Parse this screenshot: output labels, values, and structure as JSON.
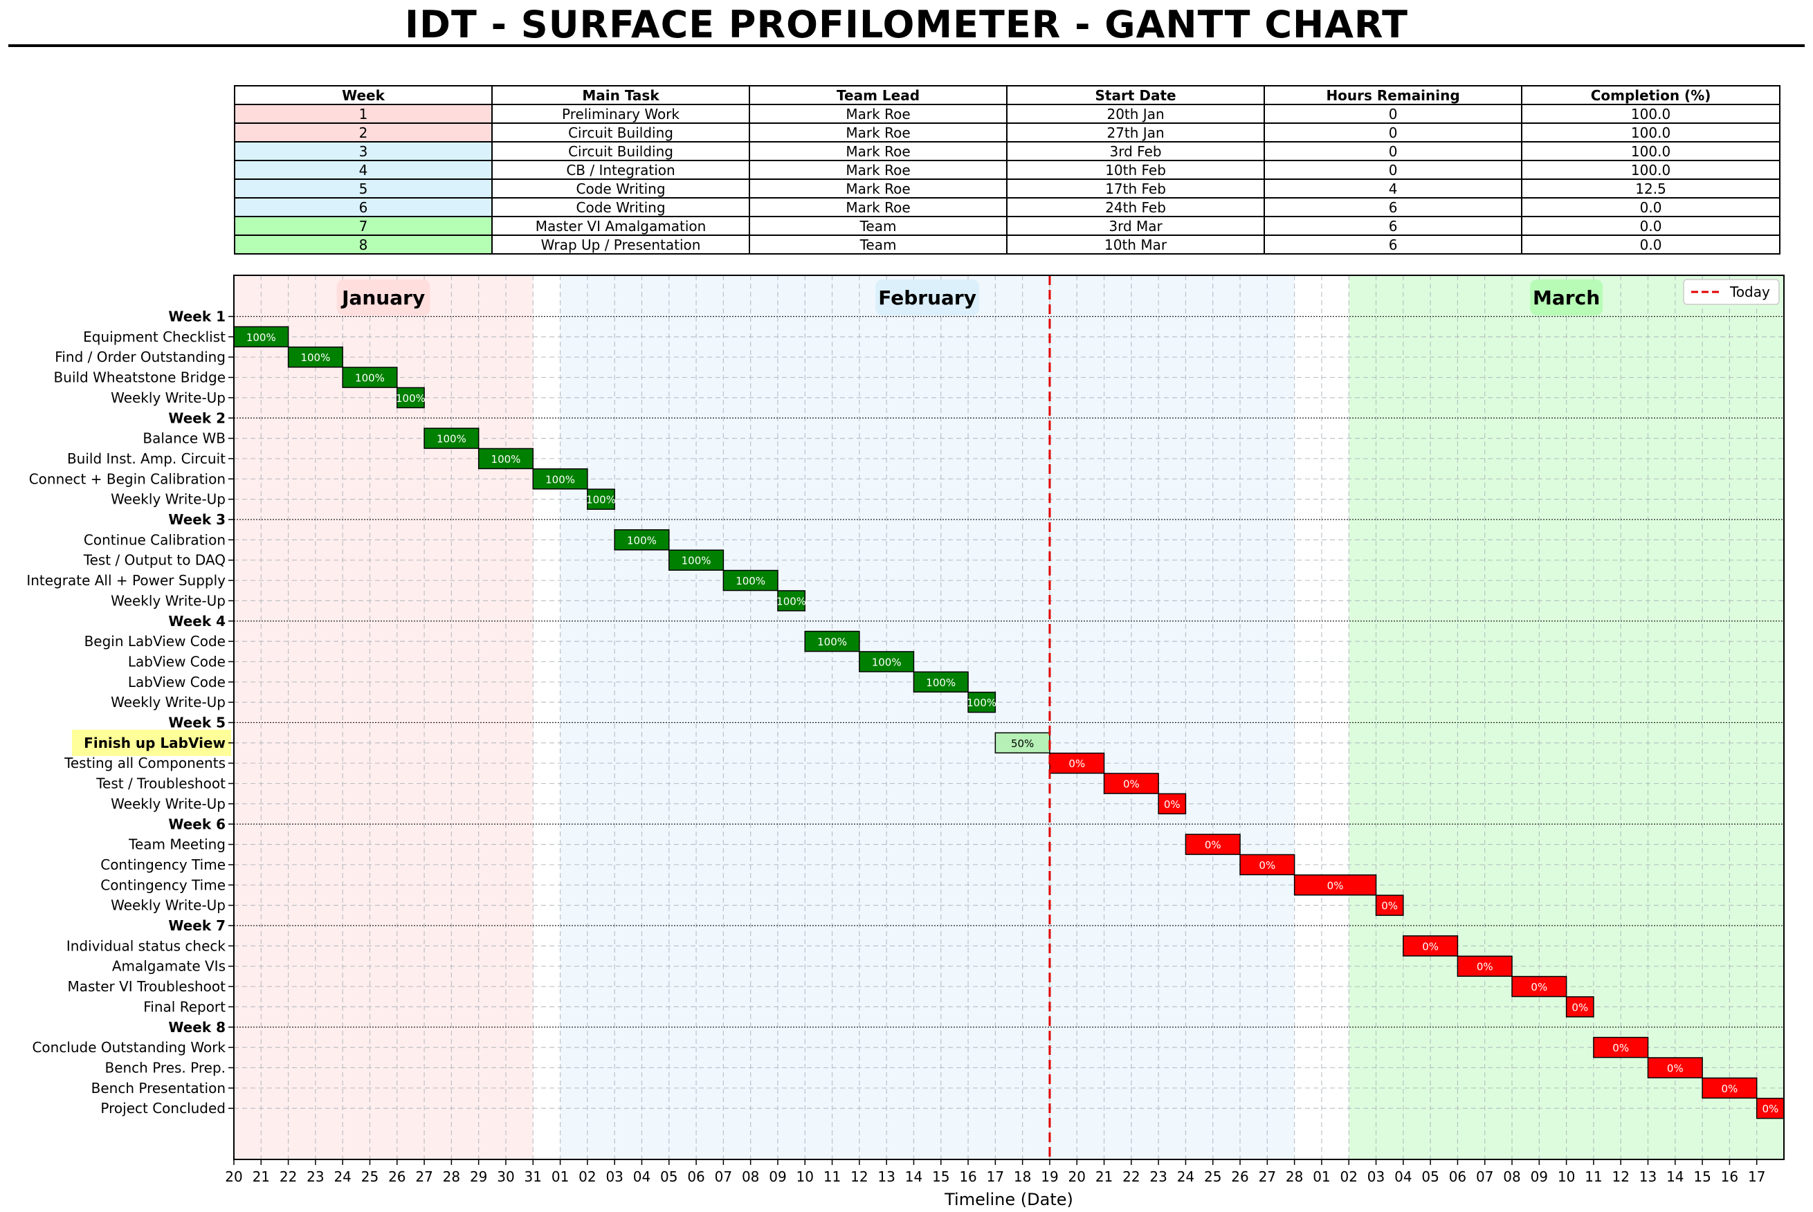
{
  "title": "IDT - SURFACE PROFILOMETER - GANTT CHART",
  "table": {
    "headers": [
      "Week",
      "Main Task",
      "Team Lead",
      "Start Date",
      "Hours Remaining",
      "Completion (%)"
    ],
    "rows": [
      {
        "week": "1",
        "task": "Preliminary Work",
        "lead": "Mark Roe",
        "start": "20th Jan",
        "hours": "0",
        "completion": "100.0",
        "color": "#ffdcdc"
      },
      {
        "week": "2",
        "task": "Circuit Building",
        "lead": "Mark Roe",
        "start": "27th Jan",
        "hours": "0",
        "completion": "100.0",
        "color": "#ffdcdc"
      },
      {
        "week": "3",
        "task": "Circuit Building",
        "lead": "Mark Roe",
        "start": "3rd Feb",
        "hours": "0",
        "completion": "100.0",
        "color": "#d9f2fb"
      },
      {
        "week": "4",
        "task": "CB / Integration",
        "lead": "Mark Roe",
        "start": "10th Feb",
        "hours": "0",
        "completion": "100.0",
        "color": "#d9f2fb"
      },
      {
        "week": "5",
        "task": "Code Writing",
        "lead": "Mark Roe",
        "start": "17th Feb",
        "hours": "4",
        "completion": "12.5",
        "color": "#d9f2fb"
      },
      {
        "week": "6",
        "task": "Code Writing",
        "lead": "Mark Roe",
        "start": "24th Feb",
        "hours": "6",
        "completion": "0.0",
        "color": "#d9f2fb"
      },
      {
        "week": "7",
        "task": "Master VI Amalgamation",
        "lead": "Team",
        "start": "3rd Mar",
        "hours": "6",
        "completion": "0.0",
        "color": "#b5ffb5"
      },
      {
        "week": "8",
        "task": "Wrap Up / Presentation",
        "lead": "Team",
        "start": "10th Mar",
        "hours": "6",
        "completion": "0.0",
        "color": "#b5ffb5"
      }
    ]
  },
  "chart_data": {
    "type": "gantt",
    "xlabel": "Timeline (Date)",
    "x_ticks": [
      "20",
      "21",
      "22",
      "23",
      "24",
      "25",
      "26",
      "27",
      "28",
      "29",
      "30",
      "31",
      "01",
      "02",
      "03",
      "04",
      "05",
      "06",
      "07",
      "08",
      "09",
      "10",
      "11",
      "12",
      "13",
      "14",
      "15",
      "16",
      "17",
      "18",
      "19",
      "20",
      "21",
      "22",
      "23",
      "24",
      "25",
      "26",
      "27",
      "28",
      "01",
      "02",
      "03",
      "04",
      "05",
      "06",
      "07",
      "08",
      "09",
      "10",
      "11",
      "12",
      "13",
      "14",
      "15",
      "16",
      "17"
    ],
    "x_range_dates": [
      "20 Jan",
      "17 Mar"
    ],
    "today": "19 Feb",
    "legend": {
      "label": "Today",
      "position": "top-right"
    },
    "grid": true,
    "months": [
      {
        "name": "January",
        "start": "20 Jan",
        "end": "31 Jan",
        "color": "#ffeeee",
        "label_bg": "#ffdede"
      },
      {
        "name": "February",
        "start": "01 Feb",
        "end": "28 Feb",
        "color": "#f0f7fd",
        "label_bg": "#dcf0fb"
      },
      {
        "name": "March",
        "start": "01 Mar",
        "end": "17 Mar",
        "color": "#ddfcdd",
        "label_bg": "#b7fbb7"
      }
    ],
    "rows": [
      {
        "kind": "week",
        "label": "Week 1"
      },
      {
        "label": "Equipment Checklist",
        "start": "20 Jan",
        "end": "22 Jan",
        "completion": "100%",
        "status": "done"
      },
      {
        "label": "Find / Order Outstanding",
        "start": "22 Jan",
        "end": "24 Jan",
        "completion": "100%",
        "status": "done"
      },
      {
        "label": "Build Wheatstone Bridge",
        "start": "24 Jan",
        "end": "26 Jan",
        "completion": "100%",
        "status": "done"
      },
      {
        "label": "Weekly Write-Up",
        "start": "26 Jan",
        "end": "27 Jan",
        "completion": "100%",
        "status": "done"
      },
      {
        "kind": "week",
        "label": "Week 2"
      },
      {
        "label": "Balance WB",
        "start": "27 Jan",
        "end": "29 Jan",
        "completion": "100%",
        "status": "done"
      },
      {
        "label": "Build Inst. Amp. Circuit",
        "start": "29 Jan",
        "end": "31 Jan",
        "completion": "100%",
        "status": "done"
      },
      {
        "label": "Connect + Begin Calibration",
        "start": "31 Jan",
        "end": "02 Feb",
        "completion": "100%",
        "status": "done"
      },
      {
        "label": "Weekly Write-Up",
        "start": "02 Feb",
        "end": "03 Feb",
        "completion": "100%",
        "status": "done"
      },
      {
        "kind": "week",
        "label": "Week 3"
      },
      {
        "label": "Continue Calibration",
        "start": "03 Feb",
        "end": "05 Feb",
        "completion": "100%",
        "status": "done"
      },
      {
        "label": "Test / Output to DAQ",
        "start": "05 Feb",
        "end": "07 Feb",
        "completion": "100%",
        "status": "done"
      },
      {
        "label": "Integrate All + Power Supply",
        "start": "07 Feb",
        "end": "09 Feb",
        "completion": "100%",
        "status": "done"
      },
      {
        "label": "Weekly Write-Up",
        "start": "09 Feb",
        "end": "10 Feb",
        "completion": "100%",
        "status": "done"
      },
      {
        "kind": "week",
        "label": "Week 4"
      },
      {
        "label": "Begin LabView Code",
        "start": "10 Feb",
        "end": "12 Feb",
        "completion": "100%",
        "status": "done"
      },
      {
        "label": "LabView Code",
        "start": "12 Feb",
        "end": "14 Feb",
        "completion": "100%",
        "status": "done"
      },
      {
        "label": "LabView Code",
        "start": "14 Feb",
        "end": "16 Feb",
        "completion": "100%",
        "status": "done"
      },
      {
        "label": "Weekly Write-Up",
        "start": "16 Feb",
        "end": "17 Feb",
        "completion": "100%",
        "status": "done"
      },
      {
        "kind": "week",
        "label": "Week 5"
      },
      {
        "label": "Finish up LabView",
        "start": "17 Feb",
        "end": "19 Feb",
        "completion": "50%",
        "status": "current",
        "highlight": true
      },
      {
        "label": "Testing all Components",
        "start": "19 Feb",
        "end": "21 Feb",
        "completion": "0%",
        "status": "todo"
      },
      {
        "label": "Test / Troubleshoot",
        "start": "21 Feb",
        "end": "23 Feb",
        "completion": "0%",
        "status": "todo"
      },
      {
        "label": "Weekly Write-Up",
        "start": "23 Feb",
        "end": "24 Feb",
        "completion": "0%",
        "status": "todo"
      },
      {
        "kind": "week",
        "label": "Week 6"
      },
      {
        "label": "Team Meeting",
        "start": "24 Feb",
        "end": "26 Feb",
        "completion": "0%",
        "status": "todo"
      },
      {
        "label": "Contingency Time",
        "start": "26 Feb",
        "end": "28 Feb",
        "completion": "0%",
        "status": "todo"
      },
      {
        "label": "Contingency Time",
        "start": "28 Feb",
        "end": "02 Mar",
        "completion": "0%",
        "status": "todo"
      },
      {
        "label": "Weekly Write-Up",
        "start": "02 Mar",
        "end": "03 Mar",
        "completion": "0%",
        "status": "todo"
      },
      {
        "kind": "week",
        "label": "Week 7"
      },
      {
        "label": "Individual status check",
        "start": "03 Mar",
        "end": "05 Mar",
        "completion": "0%",
        "status": "todo"
      },
      {
        "label": "Amalgamate VIs",
        "start": "05 Mar",
        "end": "07 Mar",
        "completion": "0%",
        "status": "todo"
      },
      {
        "label": "Master VI Troubleshoot",
        "start": "07 Mar",
        "end": "09 Mar",
        "completion": "0%",
        "status": "todo"
      },
      {
        "label": "Final Report",
        "start": "09 Mar",
        "end": "10 Mar",
        "completion": "0%",
        "status": "todo"
      },
      {
        "kind": "week",
        "label": "Week 8"
      },
      {
        "label": "Conclude Outstanding Work",
        "start": "10 Mar",
        "end": "12 Mar",
        "completion": "0%",
        "status": "todo"
      },
      {
        "label": "Bench Pres. Prep.",
        "start": "12 Mar",
        "end": "14 Mar",
        "completion": "0%",
        "status": "todo"
      },
      {
        "label": "Bench Presentation",
        "start": "14 Mar",
        "end": "16 Mar",
        "completion": "0%",
        "status": "todo"
      },
      {
        "label": "Project Concluded",
        "start": "16 Mar",
        "end": "17 Mar",
        "completion": "0%",
        "status": "todo"
      }
    ],
    "colors": {
      "done": "#008000",
      "current": "#b6f0b6",
      "todo": "#ff0000",
      "today_line": "#e00000",
      "highlight_label": "#ffff99"
    }
  }
}
